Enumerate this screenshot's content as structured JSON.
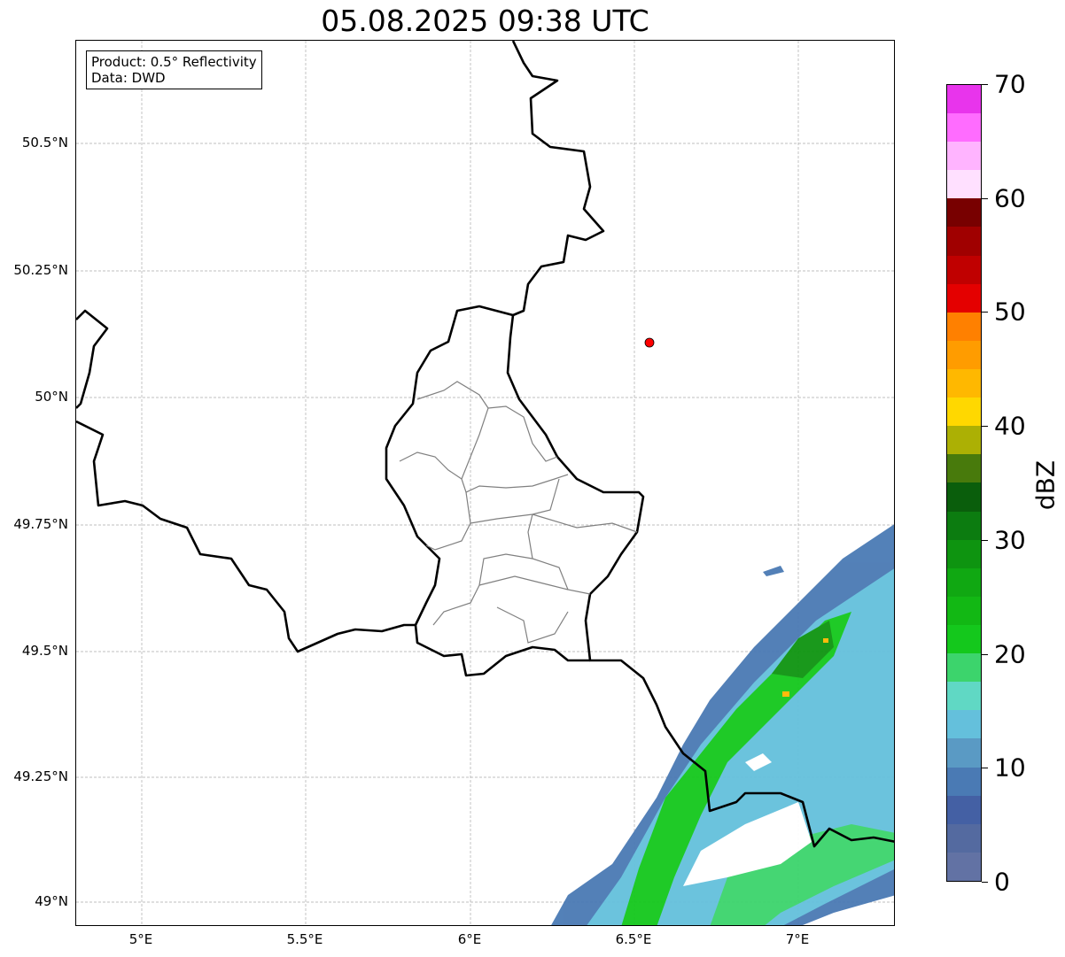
{
  "title": "05.08.2025 09:38 UTC",
  "info": {
    "line1": "Product: 0.5° Reflectivity",
    "line2": "Data: DWD"
  },
  "lat_labels": [
    "50.5°N",
    "50.25°N",
    "50°N",
    "49.75°N",
    "49.5°N",
    "49.25°N",
    "49°N"
  ],
  "lon_labels": [
    "5°E",
    "5.5°E",
    "6°E",
    "6.5°E",
    "7°E"
  ],
  "marker": {
    "color": "#ff0000"
  },
  "colorbar": {
    "label": "dBZ",
    "ticks": [
      "0",
      "10",
      "20",
      "30",
      "40",
      "50",
      "60",
      "70"
    ],
    "colors": [
      "#6272a4",
      "#546aa0",
      "#4460a4",
      "#4a7ab4",
      "#5a9ac4",
      "#64c0dc",
      "#60d8c4",
      "#3cd46c",
      "#14c81c",
      "#12b814",
      "#10a812",
      "#0e9410",
      "#0c7c10",
      "#0a5e0c",
      "#487a0c",
      "#acb004",
      "#ffd800",
      "#ffb800",
      "#ff9c00",
      "#ff8000",
      "#e40000",
      "#c00000",
      "#a00000",
      "#780000",
      "#ffe0ff",
      "#ffb4ff",
      "#ff6cff",
      "#e834ec"
    ]
  }
}
